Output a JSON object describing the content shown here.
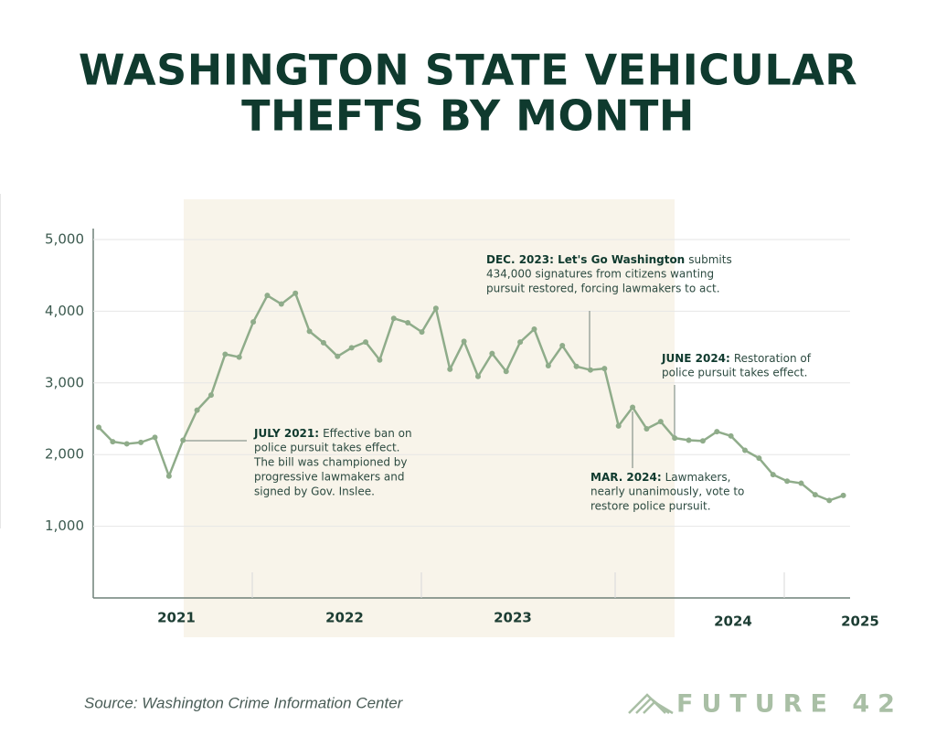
{
  "chart_data": {
    "type": "line",
    "title": [
      "WASHINGTON STATE VEHICULAR",
      "THEFTS BY MONTH"
    ],
    "values": [
      2380,
      2180,
      2150,
      2170,
      2240,
      1700,
      2200,
      2620,
      2830,
      3400,
      3360,
      3850,
      4220,
      4100,
      4250,
      3720,
      3560,
      3370,
      3490,
      3570,
      3320,
      3900,
      3840,
      3710,
      4040,
      3190,
      3580,
      3090,
      3410,
      3160,
      3570,
      3750,
      3240,
      3520,
      3230,
      3180,
      3200,
      2400,
      2660,
      2360,
      2460,
      2230,
      2200,
      2190,
      2320,
      2260,
      2060,
      1950,
      1720,
      1630,
      1600,
      1440,
      1360,
      1430
    ],
    "color": "#8fac8a",
    "x_labels": [
      "2021",
      "2022",
      "2023",
      "2024",
      "2025"
    ],
    "ylim": [
      0,
      5000
    ],
    "yticks": [
      {
        "value": 1000,
        "label": "1,000"
      },
      {
        "value": 2000,
        "label": "2,000"
      },
      {
        "value": 3000,
        "label": "3,000"
      },
      {
        "value": 4000,
        "label": "4,000"
      },
      {
        "value": 5000,
        "label": "5,000"
      }
    ],
    "grid": true,
    "annotations": [
      {
        "bold": "JULY 2021:",
        "lines": [
          "Effective ban on",
          "police pursuit takes effect.",
          "The bill was championed by",
          "progressive lawmakers and",
          "signed by Gov. Inslee."
        ]
      },
      {
        "bold": "DEC. 2023: Let's Go Washington",
        "lines": [
          "submits",
          "434,000 signatures from citizens wanting",
          "pursuit restored, forcing lawmakers to act."
        ]
      },
      {
        "bold": "JUNE 2024:",
        "lines": [
          "Restoration of",
          "police pursuit takes effect."
        ]
      },
      {
        "bold": "MAR. 2024:",
        "lines": [
          "Lawmakers,",
          "nearly unanimously, vote to",
          "restore police pursuit."
        ]
      }
    ],
    "source": "Source: Washington Crime Information Center",
    "brand": "FUTURE 42"
  }
}
